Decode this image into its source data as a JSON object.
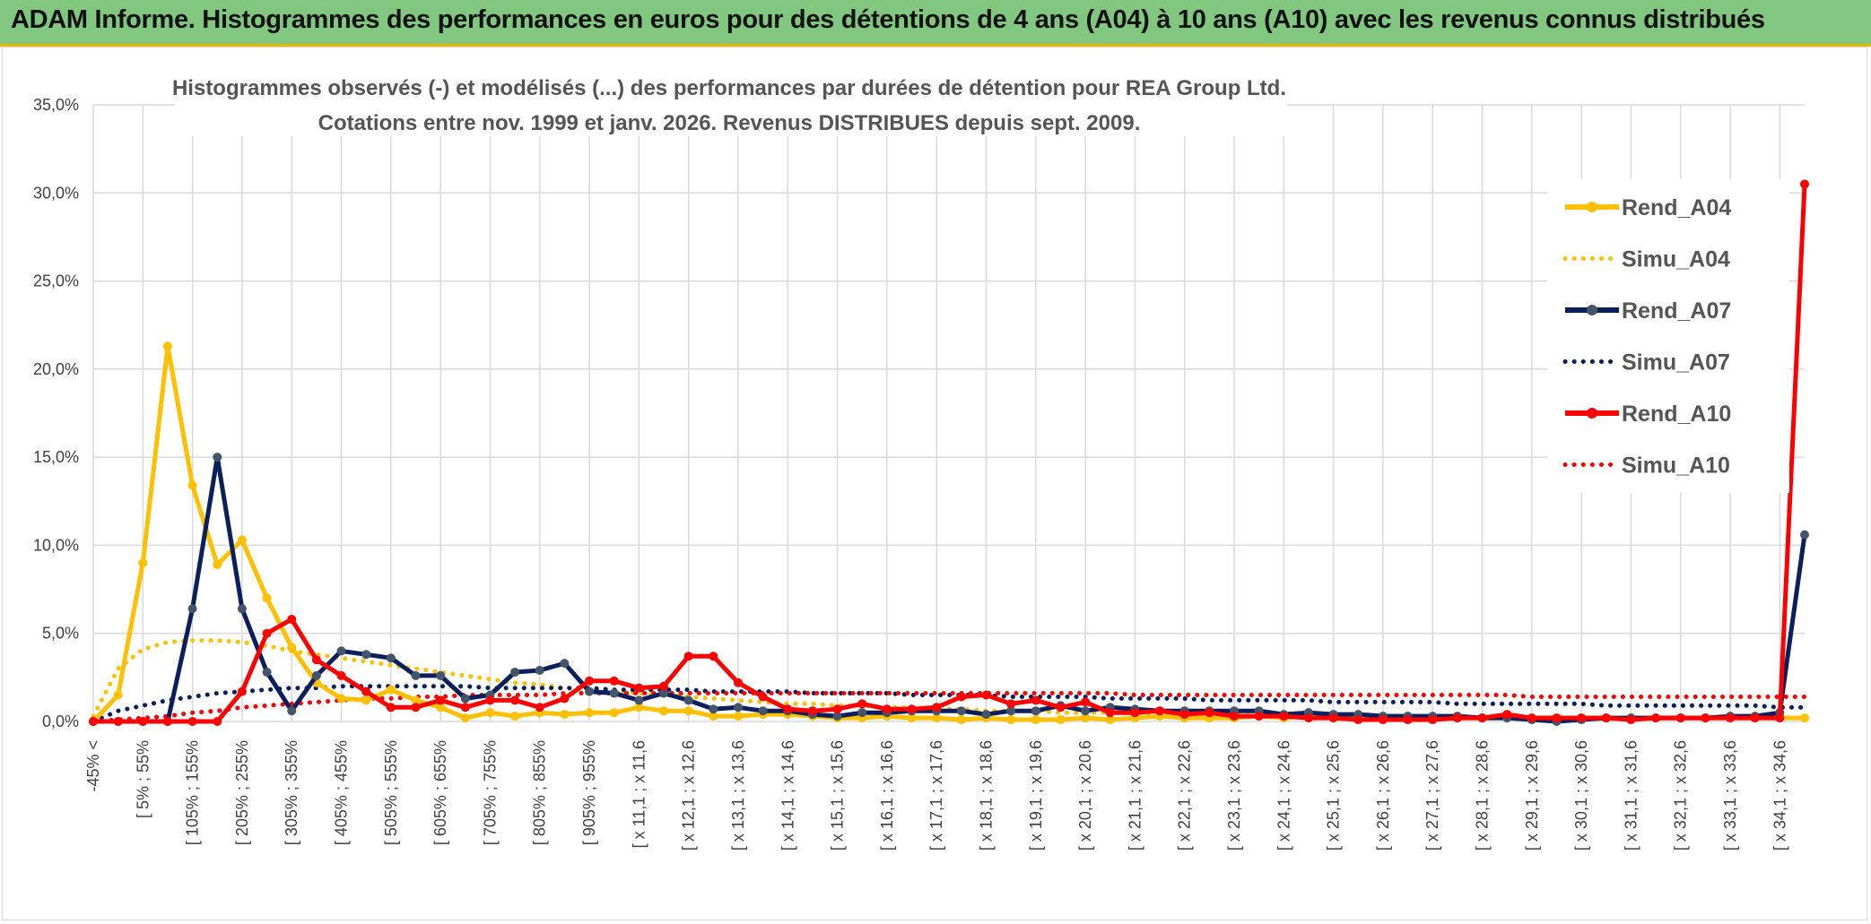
{
  "header": {
    "title": "ADAM Informe. Histogrammes des performances en euros pour des détentions de 4 ans (A04) à 10 ans (A10) avec les revenus connus distribués"
  },
  "chart_data": {
    "type": "line",
    "title": "Histogrammes observés (-) et modélisés (...) des performances par durées de détention pour REA Group Ltd.",
    "subtitle": "Cotations entre nov. 1999 et janv. 2026. Revenus DISTRIBUES depuis sept. 2009.",
    "xlabel": "",
    "ylabel": "",
    "ylim": [
      0,
      35
    ],
    "yticks": [
      "0,0%",
      "5,0%",
      "10,0%",
      "15,0%",
      "20,0%",
      "25,0%",
      "30,0%",
      "35,0%"
    ],
    "grid": true,
    "legend_position": "right",
    "x_tick_labels": [
      "-45% <",
      "[ 5% ; 55%",
      "[ 105% ; 155%",
      "[ 205% ; 255%",
      "[ 305% ; 355%",
      "[ 405% ; 455%",
      "[ 505% ; 555%",
      "[ 605% ; 655%",
      "[ 705% ; 755%",
      "[ 805% ; 855%",
      "[ 905% ; 955%",
      "[ x 11,1 ; x 11,6",
      "[ x 12,1 ; x 12,6",
      "[ x 13,1 ; x 13,6",
      "[ x 14,1 ; x 14,6",
      "[ x 15,1 ; x 15,6",
      "[ x 16,1 ; x 16,6",
      "[ x 17,1 ; x 17,6",
      "[ x 18,1 ; x 18,6",
      "[ x 19,1 ; x 19,6",
      "[ x 20,1 ; x 20,6",
      "[ x 21,1 ; x 21,6",
      "[ x 22,1 ; x 22,6",
      "[ x 23,1 ; x 23,6",
      "[ x 24,1 ; x 24,6",
      "[ x 25,1 ; x 25,6",
      "[ x 26,1 ; x 26,6",
      "[ x 27,1 ; x 27,6",
      "[ x 28,1 ; x 28,6",
      "[ x 29,1 ; x 29,6",
      "[ x 30,1 ; x 30,6",
      "[ x 31,1 ; x 31,6",
      "[ x 32,1 ; x 32,6",
      "[ x 33,1 ; x 33,6",
      "[ x 34,1 ; x 34,6"
    ],
    "num_points": 70,
    "series": [
      {
        "name": "Rend_A04",
        "style": "solid",
        "color": "#ffc000",
        "values": [
          0.0,
          1.5,
          9.0,
          21.3,
          13.4,
          8.9,
          10.3,
          7.0,
          4.2,
          2.2,
          1.3,
          1.2,
          1.8,
          1.2,
          0.8,
          0.2,
          0.5,
          0.3,
          0.5,
          0.4,
          0.5,
          0.5,
          0.8,
          0.6,
          0.6,
          0.3,
          0.3,
          0.4,
          0.4,
          0.3,
          0.2,
          0.2,
          0.3,
          0.2,
          0.2,
          0.1,
          0.2,
          0.1,
          0.1,
          0.1,
          0.2,
          0.1,
          0.2,
          0.3,
          0.2,
          0.2,
          0.2,
          0.3,
          0.2,
          0.3,
          0.3,
          0.4,
          0.3,
          0.3,
          0.2,
          0.2,
          0.2,
          0.2,
          0.2,
          0.2,
          0.2,
          0.2,
          0.2,
          0.2,
          0.2,
          0.2,
          0.2,
          0.2,
          0.2,
          0.2
        ]
      },
      {
        "name": "Simu_A04",
        "style": "dotted",
        "color": "#ffc000",
        "values": [
          0.3,
          3.0,
          4.1,
          4.5,
          4.6,
          4.6,
          4.5,
          4.3,
          4.0,
          3.8,
          3.6,
          3.4,
          3.2,
          3.0,
          2.8,
          2.6,
          2.4,
          2.2,
          2.1,
          1.9,
          1.8,
          1.7,
          1.6,
          1.5,
          1.4,
          1.3,
          1.2,
          1.1,
          1.0,
          1.0,
          0.9,
          0.9,
          0.8,
          0.8,
          0.7,
          0.7,
          0.6,
          0.6,
          0.6,
          0.5,
          0.5,
          0.5,
          0.5,
          0.4,
          0.4,
          0.4,
          0.4,
          0.4,
          0.3,
          0.3,
          0.3,
          0.3,
          0.3,
          0.3,
          0.3,
          0.3,
          0.2,
          0.2,
          0.2,
          0.2,
          0.2,
          0.2,
          0.2,
          0.2,
          0.2,
          0.2,
          0.2,
          0.2,
          0.2,
          0.2
        ]
      },
      {
        "name": "Rend_A07",
        "style": "solid",
        "color": "#0a1f5c",
        "values": [
          0.0,
          0.0,
          0.0,
          0.0,
          6.4,
          15.0,
          6.4,
          2.8,
          0.6,
          2.6,
          4.0,
          3.8,
          3.6,
          2.6,
          2.6,
          1.3,
          1.5,
          2.8,
          2.9,
          3.3,
          1.7,
          1.6,
          1.2,
          1.6,
          1.2,
          0.7,
          0.8,
          0.6,
          0.6,
          0.4,
          0.3,
          0.5,
          0.5,
          0.6,
          0.6,
          0.6,
          0.4,
          0.6,
          0.6,
          0.9,
          0.6,
          0.8,
          0.7,
          0.6,
          0.6,
          0.6,
          0.6,
          0.6,
          0.4,
          0.5,
          0.4,
          0.4,
          0.3,
          0.3,
          0.3,
          0.3,
          0.2,
          0.2,
          0.1,
          0.0,
          0.1,
          0.2,
          0.2,
          0.2,
          0.2,
          0.2,
          0.3,
          0.3,
          0.5,
          10.6
        ]
      },
      {
        "name": "Simu_A07",
        "style": "dotted",
        "color": "#0a1f5c",
        "values": [
          0.0,
          0.6,
          0.9,
          1.2,
          1.4,
          1.6,
          1.7,
          1.8,
          1.9,
          1.9,
          2.0,
          2.0,
          2.0,
          2.0,
          2.0,
          2.0,
          1.9,
          1.9,
          1.9,
          1.9,
          1.9,
          1.8,
          1.8,
          1.8,
          1.8,
          1.7,
          1.7,
          1.7,
          1.7,
          1.6,
          1.6,
          1.6,
          1.6,
          1.5,
          1.5,
          1.5,
          1.5,
          1.4,
          1.4,
          1.4,
          1.4,
          1.3,
          1.3,
          1.3,
          1.3,
          1.2,
          1.2,
          1.2,
          1.2,
          1.2,
          1.1,
          1.1,
          1.1,
          1.1,
          1.1,
          1.0,
          1.0,
          1.0,
          1.0,
          1.0,
          1.0,
          0.9,
          0.9,
          0.9,
          0.9,
          0.9,
          0.9,
          0.9,
          0.8,
          0.8
        ]
      },
      {
        "name": "Rend_A10",
        "style": "solid",
        "color": "#ff0000",
        "values": [
          0.0,
          0.0,
          0.0,
          0.0,
          0.0,
          0.0,
          1.7,
          5.0,
          5.8,
          3.5,
          2.6,
          1.7,
          0.8,
          0.8,
          1.2,
          0.8,
          1.2,
          1.2,
          0.8,
          1.3,
          2.3,
          2.3,
          1.9,
          2.0,
          3.7,
          3.7,
          2.2,
          1.4,
          0.7,
          0.6,
          0.7,
          1.0,
          0.7,
          0.7,
          0.8,
          1.4,
          1.5,
          1.0,
          1.2,
          0.8,
          1.1,
          0.5,
          0.5,
          0.6,
          0.4,
          0.5,
          0.3,
          0.3,
          0.3,
          0.2,
          0.2,
          0.1,
          0.1,
          0.1,
          0.1,
          0.2,
          0.2,
          0.4,
          0.2,
          0.2,
          0.2,
          0.2,
          0.1,
          0.2,
          0.2,
          0.2,
          0.2,
          0.2,
          0.2,
          30.5
        ]
      },
      {
        "name": "Simu_A10",
        "style": "dotted",
        "color": "#ff0000",
        "values": [
          0.0,
          0.1,
          0.2,
          0.3,
          0.5,
          0.6,
          0.8,
          0.9,
          1.0,
          1.1,
          1.2,
          1.3,
          1.3,
          1.4,
          1.4,
          1.5,
          1.5,
          1.5,
          1.5,
          1.6,
          1.6,
          1.6,
          1.6,
          1.6,
          1.6,
          1.6,
          1.6,
          1.6,
          1.6,
          1.6,
          1.6,
          1.6,
          1.6,
          1.6,
          1.6,
          1.6,
          1.6,
          1.6,
          1.6,
          1.6,
          1.6,
          1.6,
          1.5,
          1.5,
          1.5,
          1.5,
          1.5,
          1.5,
          1.5,
          1.5,
          1.5,
          1.5,
          1.5,
          1.5,
          1.5,
          1.5,
          1.5,
          1.5,
          1.4,
          1.4,
          1.4,
          1.4,
          1.4,
          1.4,
          1.4,
          1.4,
          1.4,
          1.4,
          1.4,
          1.4
        ]
      }
    ]
  }
}
